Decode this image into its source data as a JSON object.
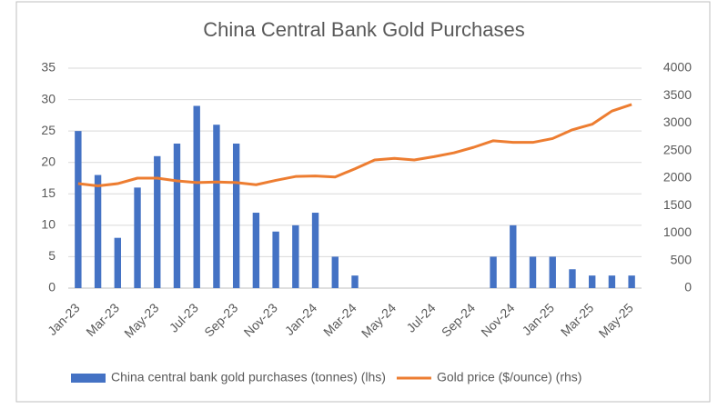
{
  "chart_data": {
    "type": "bar_line",
    "title": "China Central Bank Gold Purchases",
    "categories": [
      "Jan-23",
      null,
      "Mar-23",
      null,
      "May-23",
      null,
      "Jul-23",
      null,
      "Sep-23",
      null,
      "Nov-23",
      null,
      "Jan-24",
      null,
      "Mar-24",
      null,
      "May-24",
      null,
      "Jul-24",
      null,
      "Sep-24",
      null,
      "Nov-24",
      null,
      "Jan-25",
      null,
      "Mar-25",
      null,
      "May-25"
    ],
    "series": [
      {
        "name": "China central bank gold purchases (tonnes) (lhs)",
        "color": "#4472c4",
        "type": "bar",
        "values": [
          25,
          18,
          8,
          16,
          21,
          23,
          29,
          26,
          23,
          12,
          9,
          10,
          12,
          5,
          2,
          0,
          0,
          0,
          0,
          0,
          0,
          5,
          10,
          5,
          5,
          3,
          2,
          2,
          2
        ]
      },
      {
        "name": "Gold price ($/ounce) (rhs)",
        "color": "#ed7d31",
        "type": "line",
        "axis": "y2",
        "values": [
          1900,
          1860,
          1900,
          2000,
          2000,
          1950,
          1920,
          1930,
          1920,
          1880,
          1960,
          2030,
          2040,
          2020,
          2170,
          2330,
          2360,
          2330,
          2390,
          2460,
          2560,
          2680,
          2650,
          2650,
          2720,
          2880,
          2980,
          3220,
          3340
        ]
      }
    ],
    "ylim": [
      0,
      35
    ],
    "yticks": [
      0,
      5,
      10,
      15,
      20,
      25,
      30,
      35
    ],
    "y2lim": [
      0,
      4000
    ],
    "y2ticks": [
      0,
      500,
      1000,
      1500,
      2000,
      2500,
      3000,
      3500,
      4000
    ],
    "grid": true
  }
}
